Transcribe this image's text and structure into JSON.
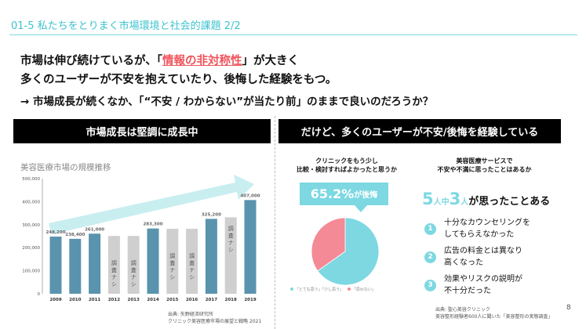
{
  "header": {
    "title": "01-5 私たちをとりまく市場環境と社会的課題 2/2"
  },
  "headline": {
    "line1_before": "市場は伸び続けているが、「",
    "line1_highlight": "情報の非対称性",
    "line1_after": "」が大きく",
    "line2": "多くのユーザーが不安を抱えていたり、後悔した経験をもつ。",
    "line3": "→ 市場成長が続くなか、「“不安 / わからない”が当たり前」のままで良いのだろうか？"
  },
  "left_panel": {
    "heading": "市場成長は堅調に成長中",
    "source_line1": "出典: 矢野経済研究所",
    "source_line2": "クリニック美容医療市場の展望と戦略 2021"
  },
  "right_panel": {
    "heading": "だけど、多くのユーザーが不安/後悔を経験している",
    "q1_line1": "クリニックをもう少し",
    "q1_line2": "比較・検討すればよかったと思うか",
    "callout_value": "65.2%",
    "callout_suffix": "が後悔",
    "q2_line1": "美容医療サービスで",
    "q2_line2": "不安や不満に思ったことはあるか",
    "ratio": {
      "n1": "5",
      "u1": "人",
      "mid": "中",
      "n2": "3",
      "u2": "人",
      "text": "が思ったことある"
    },
    "reasons": [
      {
        "num": "1",
        "text": "十分なカウンセリングを\nしてもらえなかった"
      },
      {
        "num": "2",
        "text": "広告の料金とは異なり\n高くなった"
      },
      {
        "num": "3",
        "text": "効果やリスクの説明が\n不十分だった"
      }
    ],
    "source_line1": "出典: 聖心美容クリニック",
    "source_line2": "美容整形経験者600人に聞いた「美容整形の実態調査」"
  },
  "page_number": "8",
  "colors": {
    "accent": "#7dd8e2",
    "bar": "#5a93ad",
    "no_data_bar": "#cfcfcf",
    "highlight": "#f0535b",
    "pie_yes": "#7dd8e2",
    "pie_no": "#f48a96",
    "arrow": "#c8eef0"
  },
  "chart_data": [
    {
      "type": "bar",
      "title": "美容医療市場の規模推移",
      "categories": [
        "2009",
        "2010",
        "2011",
        "2012",
        "2013",
        "2014",
        "2015",
        "2016",
        "2017",
        "2018",
        "2019"
      ],
      "values": [
        248200,
        238400,
        261000,
        null,
        null,
        283300,
        null,
        null,
        325200,
        null,
        407000
      ],
      "labels": [
        "248,200",
        "238,400",
        "261,000",
        "",
        "",
        "283,300",
        "",
        "",
        "325,200",
        "",
        "407,000"
      ],
      "no_data_label": "調査ナシ",
      "no_data_chars": [
        "調",
        "査",
        "ナ",
        "シ"
      ],
      "ylim": [
        0,
        500000
      ],
      "yticks": [
        "0",
        "100,000",
        "200,000",
        "300,000",
        "400,000",
        "500,000"
      ],
      "trend_arrow": "up"
    },
    {
      "type": "pie",
      "slices": [
        {
          "name": "「とても思う」「少し思う」",
          "value": 65.2
        },
        {
          "name": "「思わない」",
          "value": 34.8
        }
      ],
      "legend": "bottom"
    }
  ]
}
